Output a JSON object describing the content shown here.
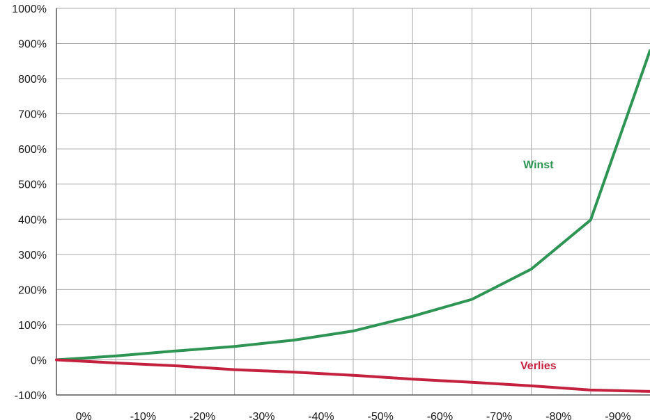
{
  "chart_data": {
    "type": "line",
    "title": "",
    "xlabel": "",
    "ylabel": "",
    "categories": [
      "0%",
      "-10%",
      "-20%",
      "-30%",
      "-40%",
      "-50%",
      "-60%",
      "-70%",
      "-80%",
      "-90%"
    ],
    "x": [
      0,
      -10,
      -20,
      -30,
      -40,
      -50,
      -60,
      -70,
      -80,
      -90
    ],
    "ylim": [
      -100,
      1000
    ],
    "yticks": [
      -100,
      0,
      100,
      200,
      300,
      400,
      500,
      600,
      700,
      800,
      900,
      1000
    ],
    "ytick_labels": [
      "-100%",
      "0%",
      "100%",
      "200%",
      "300%",
      "400%",
      "500%",
      "600%",
      "700%",
      "800%",
      "900%",
      "1000%"
    ],
    "grid": true,
    "legend": "none",
    "series": [
      {
        "name": "Winst",
        "color": "#2e9454",
        "x": [
          0,
          -10,
          -20,
          -30,
          -40,
          -50,
          -60,
          -70,
          -80,
          -90,
          -100
        ],
        "values": [
          0,
          11,
          25,
          38,
          56,
          82,
          124,
          172,
          258,
          398,
          880
        ]
      },
      {
        "name": "Verlies",
        "color": "#c4213f",
        "x": [
          0,
          -10,
          -20,
          -30,
          -40,
          -50,
          -60,
          -70,
          -80,
          -90,
          -100
        ],
        "values": [
          0,
          -9,
          -17,
          -28,
          -35,
          -44,
          -55,
          -64,
          -74,
          -86,
          -90
        ]
      }
    ]
  }
}
